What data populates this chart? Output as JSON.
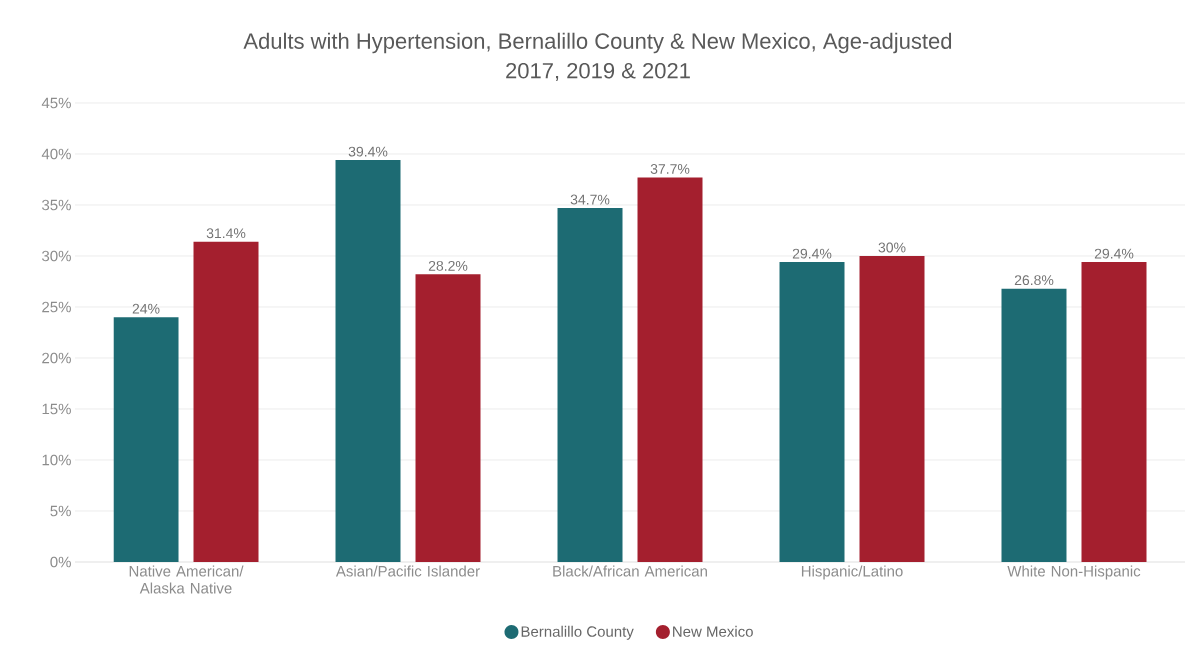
{
  "chart_data": {
    "type": "bar",
    "title": "Adults with Hypertension, Bernalillo County & New Mexico, Age-adjusted",
    "subtitle": "2017, 2019 & 2021",
    "categories": [
      "Native American/ Alaska Native",
      "Asian/Pacific Islander",
      "Black/African American",
      "Hispanic/Latino",
      "White Non-Hispanic"
    ],
    "series": [
      {
        "name": "Bernalillo County",
        "color": "#1d6b73",
        "values": [
          24,
          39.4,
          34.7,
          29.4,
          26.8
        ],
        "value_labels": [
          "24%",
          "39.4%",
          "34.7%",
          "29.4%",
          "26.8%"
        ]
      },
      {
        "name": "New Mexico",
        "color": "#a41f2e",
        "values": [
          31.4,
          28.2,
          37.7,
          30,
          29.4
        ],
        "value_labels": [
          "31.4%",
          "28.2%",
          "37.7%",
          "30%",
          "29.4%"
        ]
      }
    ],
    "ylim": [
      0,
      45
    ],
    "yticks": [
      {
        "value": 0,
        "label": "0%"
      },
      {
        "value": 5,
        "label": "5%"
      },
      {
        "value": 10,
        "label": "10%"
      },
      {
        "value": 15,
        "label": "15%"
      },
      {
        "value": 20,
        "label": "20%"
      },
      {
        "value": 25,
        "label": "25%"
      },
      {
        "value": 30,
        "label": "30%"
      },
      {
        "value": 35,
        "label": "35%"
      },
      {
        "value": 40,
        "label": "40%"
      },
      {
        "value": 45,
        "label": "45%"
      }
    ],
    "grid": "y",
    "legend": "bottom"
  }
}
